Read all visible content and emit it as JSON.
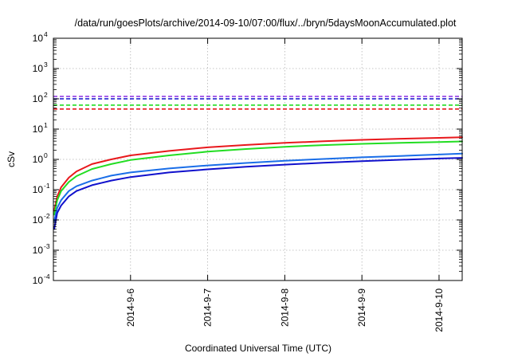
{
  "chart_data": {
    "type": "line",
    "title": "/data/run/goesPlots/archive/2014-09-10/07:00/flux/../bryn/5daysMoonAccumulated.plot",
    "xlabel": "Coordinated Universal Time (UTC)",
    "ylabel": "cSv",
    "yscale": "log",
    "ylim": [
      0.0001,
      10000
    ],
    "xlim": [
      0,
      5.3
    ],
    "grid": true,
    "legend": "none",
    "y_ticks": [
      {
        "value": 0.0001,
        "mantissa": "10",
        "exp": "-4"
      },
      {
        "value": 0.001,
        "mantissa": "10",
        "exp": "-3"
      },
      {
        "value": 0.01,
        "mantissa": "10",
        "exp": "-2"
      },
      {
        "value": 0.1,
        "mantissa": "10",
        "exp": "-1"
      },
      {
        "value": 1,
        "mantissa": "10",
        "exp": "0"
      },
      {
        "value": 10,
        "mantissa": "10",
        "exp": "1"
      },
      {
        "value": 100,
        "mantissa": "10",
        "exp": "2"
      },
      {
        "value": 1000,
        "mantissa": "10",
        "exp": "3"
      },
      {
        "value": 10000,
        "mantissa": "10",
        "exp": "4"
      }
    ],
    "x_ticks": [
      {
        "pos": 1,
        "label": "2014-9-6"
      },
      {
        "pos": 2,
        "label": "2014-9-7"
      },
      {
        "pos": 3,
        "label": "2014-9-8"
      },
      {
        "pos": 4,
        "label": "2014-9-9"
      },
      {
        "pos": 5,
        "label": "2014-9-10"
      }
    ],
    "series": [
      {
        "color": "#e8181c",
        "style": "solid",
        "points": [
          [
            0.01,
            0.02
          ],
          [
            0.05,
            0.06
          ],
          [
            0.1,
            0.12
          ],
          [
            0.2,
            0.25
          ],
          [
            0.3,
            0.4
          ],
          [
            0.5,
            0.7
          ],
          [
            0.75,
            1.0
          ],
          [
            1.0,
            1.35
          ],
          [
            1.5,
            1.9
          ],
          [
            2.0,
            2.5
          ],
          [
            2.5,
            3.0
          ],
          [
            3.0,
            3.5
          ],
          [
            3.5,
            3.95
          ],
          [
            4.0,
            4.4
          ],
          [
            4.5,
            4.8
          ],
          [
            5.0,
            5.15
          ],
          [
            5.3,
            5.4
          ]
        ]
      },
      {
        "color": "#22dd22",
        "style": "solid",
        "points": [
          [
            0.01,
            0.015
          ],
          [
            0.05,
            0.045
          ],
          [
            0.1,
            0.09
          ],
          [
            0.2,
            0.18
          ],
          [
            0.3,
            0.28
          ],
          [
            0.5,
            0.48
          ],
          [
            0.75,
            0.7
          ],
          [
            1.0,
            0.95
          ],
          [
            1.5,
            1.35
          ],
          [
            2.0,
            1.8
          ],
          [
            2.5,
            2.2
          ],
          [
            3.0,
            2.6
          ],
          [
            3.5,
            2.95
          ],
          [
            4.0,
            3.25
          ],
          [
            4.5,
            3.5
          ],
          [
            5.0,
            3.75
          ],
          [
            5.3,
            3.9
          ]
        ]
      },
      {
        "color": "#1a6ee8",
        "style": "solid",
        "points": [
          [
            0.01,
            0.009
          ],
          [
            0.05,
            0.025
          ],
          [
            0.1,
            0.045
          ],
          [
            0.2,
            0.09
          ],
          [
            0.3,
            0.13
          ],
          [
            0.5,
            0.2
          ],
          [
            0.75,
            0.29
          ],
          [
            1.0,
            0.37
          ],
          [
            1.5,
            0.5
          ],
          [
            2.0,
            0.63
          ],
          [
            2.5,
            0.76
          ],
          [
            3.0,
            0.9
          ],
          [
            3.5,
            1.03
          ],
          [
            4.0,
            1.17
          ],
          [
            4.5,
            1.3
          ],
          [
            5.0,
            1.45
          ],
          [
            5.3,
            1.55
          ]
        ]
      },
      {
        "color": "#1010cc",
        "style": "solid",
        "points": [
          [
            0.01,
            0.005
          ],
          [
            0.05,
            0.017
          ],
          [
            0.1,
            0.03
          ],
          [
            0.2,
            0.06
          ],
          [
            0.3,
            0.09
          ],
          [
            0.5,
            0.14
          ],
          [
            0.75,
            0.2
          ],
          [
            1.0,
            0.26
          ],
          [
            1.5,
            0.37
          ],
          [
            2.0,
            0.47
          ],
          [
            2.5,
            0.57
          ],
          [
            3.0,
            0.67
          ],
          [
            3.5,
            0.77
          ],
          [
            4.0,
            0.87
          ],
          [
            4.5,
            0.97
          ],
          [
            5.0,
            1.07
          ],
          [
            5.3,
            1.12
          ]
        ]
      },
      {
        "color": "#8a2be2",
        "style": "dashed",
        "points": [
          [
            0,
            120
          ],
          [
            5.3,
            120
          ]
        ]
      },
      {
        "color": "#1010cc",
        "style": "dashed",
        "points": [
          [
            0,
            100
          ],
          [
            5.3,
            100
          ]
        ]
      },
      {
        "color": "#22dd22",
        "style": "dashed",
        "points": [
          [
            0,
            62
          ],
          [
            5.3,
            62
          ]
        ]
      },
      {
        "color": "#e8181c",
        "style": "dashed",
        "points": [
          [
            0,
            46
          ],
          [
            5.3,
            46
          ]
        ]
      }
    ]
  }
}
